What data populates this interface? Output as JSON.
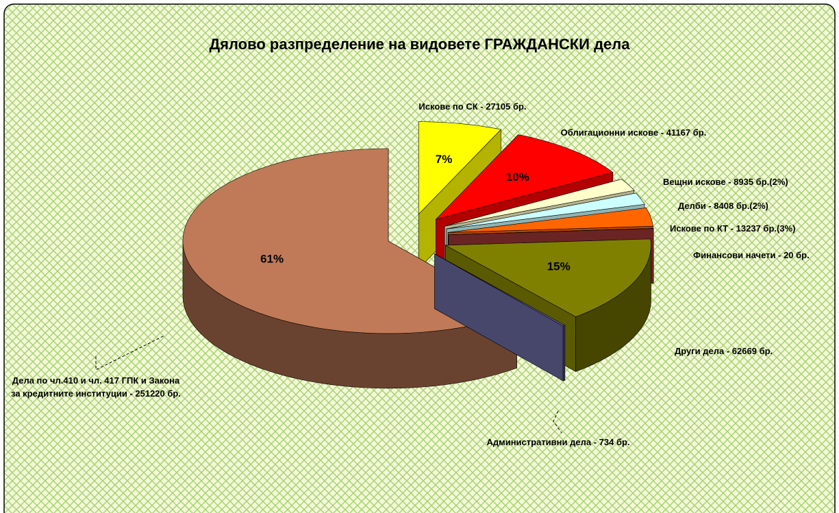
{
  "chart_data": {
    "type": "pie",
    "title": "Дялово разпределение на видовете ГРАЖДАНСКИ дела",
    "categories": [
      "Искове по СК - 27105 бр.",
      "Облигационни искове - 41167 бр.",
      "Вещни искове - 8935 бр.(2%)",
      "Делби - 8408 бр.(2%)",
      "Искове по КТ - 13237 бр.(3%)",
      "Финансови начети - 20 бр.",
      "Други дела - 62669 бр.",
      "Административни дела - 734 бр.",
      "Дела по чл.410 и чл. 417 ГПК и Закона за кредитните институции - 251220 бр."
    ],
    "values": [
      6.56,
      9.96,
      2.16,
      2.03,
      3.2,
      0.005,
      15.16,
      0.18,
      60.75
    ],
    "value_labels": [
      "7%",
      "10%",
      null,
      null,
      null,
      null,
      "15%",
      null,
      "61%"
    ],
    "colors": [
      "#ffff00",
      "#ff0000",
      "#ffffcc",
      "#ccffff",
      "#ff6600",
      "#993333",
      "#808000",
      "#666699",
      "#c07a58"
    ]
  }
}
